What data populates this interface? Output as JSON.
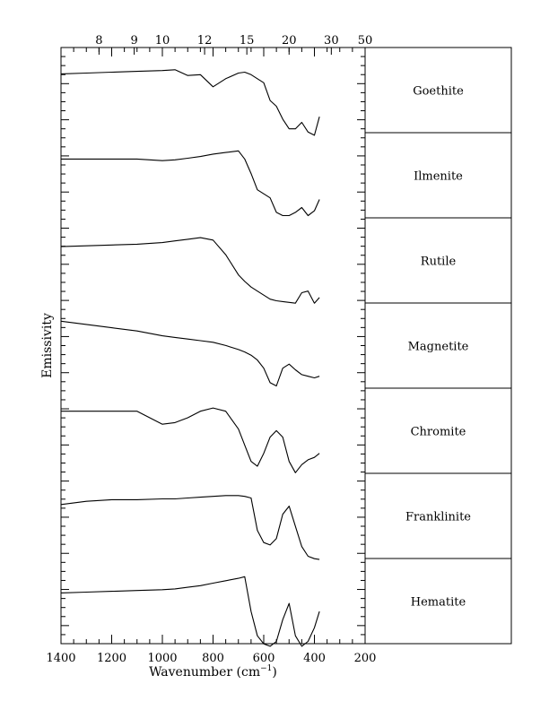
{
  "chart_data": {
    "type": "line",
    "xlabel": "Wavenumber (cm",
    "xlabel_sup": "−1",
    "xlabel_close": ")",
    "ylabel": "Emissivity",
    "xlim": [
      1400,
      200
    ],
    "x_ticks": [
      "1400",
      "1200",
      "1000",
      "800",
      "600",
      "400",
      "200"
    ],
    "top_axis_ticks": [
      {
        "label": "8",
        "wavelength_um": 8
      },
      {
        "label": "9",
        "wavelength_um": 9
      },
      {
        "label": "10",
        "wavelength_um": 10
      },
      {
        "label": "12",
        "wavelength_um": 12
      },
      {
        "label": "15",
        "wavelength_um": 15
      },
      {
        "label": "20",
        "wavelength_um": 20
      },
      {
        "label": "30",
        "wavelength_um": 30
      },
      {
        "label": "50",
        "wavelength_um": 50
      }
    ],
    "series_note": "y values are relative emissivity (0 = panel bottom, 1 = panel top); curves offset per mineral",
    "x": [
      1400,
      1300,
      1200,
      1100,
      1000,
      950,
      900,
      850,
      800,
      750,
      700,
      675,
      650,
      625,
      600,
      575,
      550,
      525,
      500,
      475,
      450,
      425,
      400,
      380
    ],
    "series": [
      {
        "name": "Goethite",
        "values": [
          0.78,
          0.79,
          0.8,
          0.81,
          0.82,
          0.83,
          0.76,
          0.77,
          0.62,
          0.72,
          0.79,
          0.8,
          0.77,
          0.72,
          0.67,
          0.45,
          0.38,
          0.22,
          0.1,
          0.1,
          0.18,
          0.06,
          0.02,
          0.25
        ]
      },
      {
        "name": "Ilmenite",
        "values": [
          0.78,
          0.78,
          0.78,
          0.78,
          0.76,
          0.77,
          0.79,
          0.81,
          0.84,
          0.86,
          0.88,
          0.78,
          0.6,
          0.4,
          0.35,
          0.3,
          0.12,
          0.08,
          0.08,
          0.12,
          0.18,
          0.08,
          0.14,
          0.28
        ]
      },
      {
        "name": "Rutile",
        "values": [
          0.75,
          0.76,
          0.77,
          0.78,
          0.8,
          0.82,
          0.84,
          0.86,
          0.83,
          0.65,
          0.4,
          0.32,
          0.25,
          0.2,
          0.15,
          0.1,
          0.08,
          0.07,
          0.06,
          0.05,
          0.18,
          0.2,
          0.05,
          0.12
        ]
      },
      {
        "name": "Magnetite",
        "values": [
          0.88,
          0.84,
          0.8,
          0.76,
          0.7,
          0.68,
          0.66,
          0.64,
          0.62,
          0.58,
          0.53,
          0.5,
          0.46,
          0.4,
          0.3,
          0.12,
          0.08,
          0.3,
          0.35,
          0.28,
          0.22,
          0.2,
          0.18,
          0.2
        ]
      },
      {
        "name": "Chromite",
        "values": [
          0.82,
          0.82,
          0.82,
          0.82,
          0.66,
          0.68,
          0.74,
          0.82,
          0.86,
          0.82,
          0.6,
          0.4,
          0.2,
          0.14,
          0.3,
          0.5,
          0.58,
          0.5,
          0.2,
          0.06,
          0.16,
          0.22,
          0.25,
          0.3
        ]
      },
      {
        "name": "Franklinite",
        "values": [
          0.72,
          0.76,
          0.78,
          0.78,
          0.79,
          0.79,
          0.8,
          0.81,
          0.82,
          0.83,
          0.83,
          0.82,
          0.8,
          0.4,
          0.25,
          0.22,
          0.3,
          0.6,
          0.7,
          0.45,
          0.2,
          0.08,
          0.05,
          0.04
        ]
      },
      {
        "name": "Hematite",
        "values": [
          0.68,
          0.69,
          0.7,
          0.71,
          0.72,
          0.73,
          0.75,
          0.77,
          0.8,
          0.83,
          0.86,
          0.88,
          0.45,
          0.15,
          0.05,
          0.02,
          0.08,
          0.35,
          0.55,
          0.15,
          0.02,
          0.08,
          0.25,
          0.45
        ]
      }
    ]
  }
}
